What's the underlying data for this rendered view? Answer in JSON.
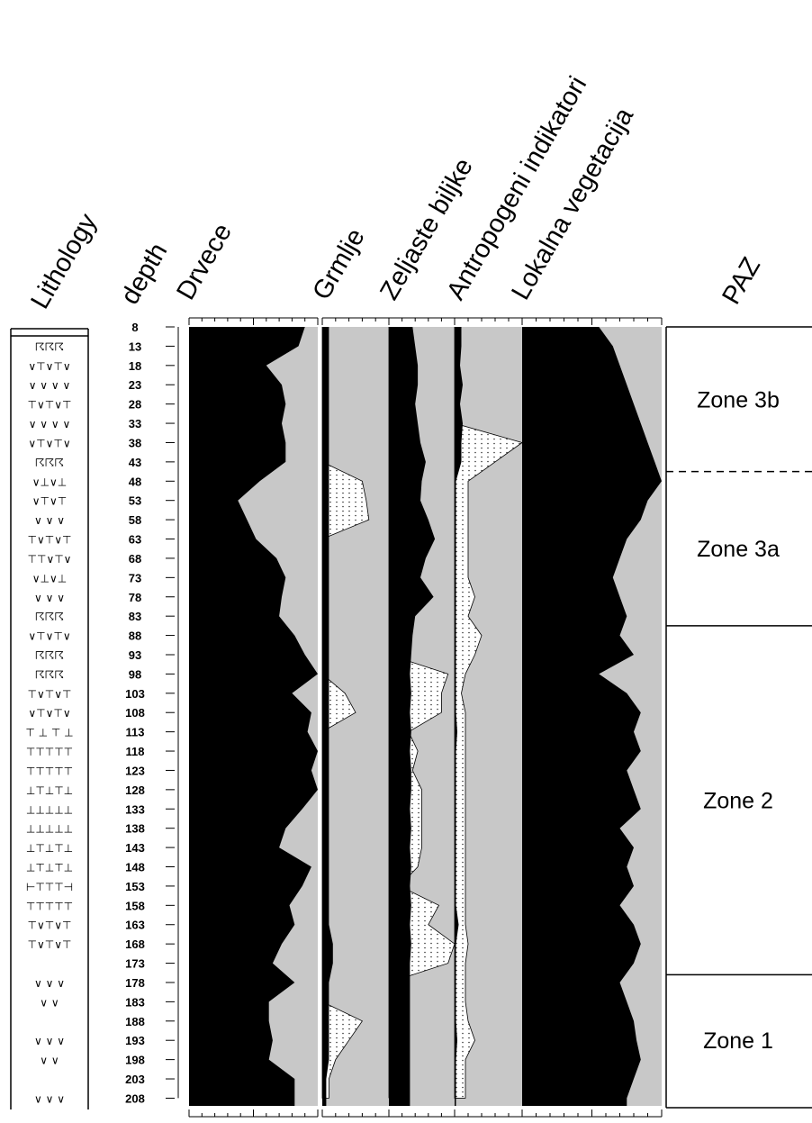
{
  "chart_data": {
    "type": "area",
    "title": "",
    "depth_label": "depth",
    "lithology_label": "Lithology",
    "zone_column_label": "PAZ",
    "depths": [
      8,
      13,
      18,
      23,
      28,
      33,
      38,
      43,
      48,
      53,
      58,
      63,
      68,
      73,
      78,
      83,
      88,
      93,
      98,
      103,
      108,
      113,
      118,
      123,
      128,
      133,
      138,
      143,
      148,
      153,
      158,
      163,
      168,
      173,
      178,
      183,
      188,
      193,
      198,
      203,
      208
    ],
    "panels": [
      {
        "name": "Drvece",
        "max": 100,
        "scale_label": "50%",
        "values": [
          90,
          85,
          60,
          72,
          75,
          72,
          75,
          75,
          55,
          38,
          45,
          52,
          68,
          75,
          72,
          70,
          82,
          90,
          100,
          80,
          95,
          92,
          100,
          95,
          100,
          88,
          75,
          70,
          95,
          88,
          78,
          82,
          72,
          65,
          82,
          62,
          62,
          65,
          62,
          82,
          82
        ]
      },
      {
        "name": "Grmlje",
        "max": 50,
        "scale_label": "30%",
        "values": [
          5,
          5,
          5,
          5,
          5,
          5,
          5,
          5,
          5,
          5,
          5,
          5,
          5,
          5,
          5,
          5,
          5,
          5,
          5,
          5,
          5,
          5,
          5,
          5,
          5,
          5,
          5,
          5,
          5,
          5,
          5,
          5,
          8,
          8,
          5,
          5,
          5,
          5,
          5,
          3,
          3
        ],
        "exag_values": [
          0,
          0,
          0,
          0,
          0,
          0,
          0,
          0,
          30,
          33,
          35,
          0,
          0,
          0,
          0,
          0,
          0,
          0,
          0,
          17,
          25,
          0,
          0,
          0,
          0,
          0,
          0,
          0,
          0,
          0,
          0,
          0,
          0,
          0,
          0,
          0,
          30,
          20,
          10,
          5,
          5
        ]
      },
      {
        "name": "Zeljaste biljke",
        "max": 50,
        "scale_label": "30%",
        "values": [
          18,
          20,
          22,
          22,
          20,
          22,
          24,
          28,
          25,
          24,
          30,
          35,
          28,
          24,
          34,
          20,
          18,
          17,
          16,
          17,
          16,
          17,
          16,
          17,
          17,
          16,
          17,
          16,
          17,
          16,
          17,
          16,
          17,
          16,
          16,
          16,
          16,
          16,
          16,
          16,
          16
        ],
        "exag_values": [
          0,
          0,
          0,
          0,
          0,
          0,
          0,
          0,
          0,
          0,
          0,
          0,
          0,
          0,
          0,
          0,
          0,
          0,
          45,
          40,
          40,
          15,
          22,
          18,
          25,
          25,
          25,
          25,
          22,
          8,
          38,
          30,
          50,
          45,
          0,
          0,
          0,
          0,
          0,
          0,
          0
        ]
      },
      {
        "name": "Antropogeni indikatori",
        "max": 50,
        "scale_label": "30%",
        "values": [
          5,
          5,
          4,
          6,
          4,
          6,
          5,
          5,
          1,
          1,
          1,
          1,
          1,
          1,
          1,
          1,
          1,
          1,
          1,
          1,
          1,
          2,
          1,
          1,
          1,
          1,
          1,
          1,
          1,
          1,
          1,
          3,
          1,
          1,
          1,
          1,
          1,
          2,
          1,
          1,
          1
        ],
        "exag_values": [
          0,
          0,
          0,
          0,
          0,
          0,
          50,
          30,
          10,
          10,
          10,
          10,
          10,
          10,
          15,
          10,
          20,
          15,
          8,
          5,
          8,
          8,
          8,
          8,
          8,
          8,
          8,
          8,
          8,
          8,
          8,
          8,
          10,
          8,
          8,
          8,
          10,
          15,
          8,
          8,
          8
        ]
      },
      {
        "name": "Lokalna vegetacija",
        "max": 100,
        "scale_label": "50%",
        "values": [
          55,
          65,
          70,
          75,
          80,
          85,
          90,
          95,
          100,
          90,
          85,
          75,
          70,
          65,
          70,
          75,
          70,
          80,
          55,
          75,
          85,
          80,
          85,
          75,
          80,
          85,
          70,
          80,
          75,
          80,
          70,
          80,
          85,
          80,
          70,
          75,
          80,
          82,
          85,
          80,
          75
        ]
      }
    ],
    "lithology": [
      {
        "depth": 13,
        "glyph": "☈☈☈"
      },
      {
        "depth": 18,
        "glyph": "∨⊤∨⊤∨"
      },
      {
        "depth": 23,
        "glyph": "∨ ∨ ∨ ∨"
      },
      {
        "depth": 28,
        "glyph": "⊤∨⊤∨⊤"
      },
      {
        "depth": 33,
        "glyph": "∨ ∨ ∨ ∨"
      },
      {
        "depth": 38,
        "glyph": "∨⊤∨⊤∨"
      },
      {
        "depth": 43,
        "glyph": "☈☈☈"
      },
      {
        "depth": 48,
        "glyph": "∨⊥∨⊥"
      },
      {
        "depth": 53,
        "glyph": "∨⊤∨⊤"
      },
      {
        "depth": 58,
        "glyph": "∨ ∨ ∨"
      },
      {
        "depth": 63,
        "glyph": "⊤∨⊤∨⊤"
      },
      {
        "depth": 68,
        "glyph": "⊤⊤∨⊤∨"
      },
      {
        "depth": 73,
        "glyph": "∨⊥∨⊥"
      },
      {
        "depth": 78,
        "glyph": "∨ ∨ ∨"
      },
      {
        "depth": 83,
        "glyph": "☈☈☈"
      },
      {
        "depth": 88,
        "glyph": "∨⊤∨⊤∨"
      },
      {
        "depth": 93,
        "glyph": "☈☈☈"
      },
      {
        "depth": 98,
        "glyph": "☈☈☈"
      },
      {
        "depth": 103,
        "glyph": "⊤∨⊤∨⊤"
      },
      {
        "depth": 108,
        "glyph": "∨⊤∨⊤∨"
      },
      {
        "depth": 113,
        "glyph": "⊤ ⊥ ⊤ ⊥"
      },
      {
        "depth": 118,
        "glyph": "⊤⊤⊤⊤⊤"
      },
      {
        "depth": 123,
        "glyph": "⊤⊤⊤⊤⊤"
      },
      {
        "depth": 128,
        "glyph": "⊥⊤⊥⊤⊥"
      },
      {
        "depth": 133,
        "glyph": "⊥⊥⊥⊥⊥"
      },
      {
        "depth": 138,
        "glyph": "⊥⊥⊥⊥⊥"
      },
      {
        "depth": 143,
        "glyph": "⊥⊤⊥⊤⊥"
      },
      {
        "depth": 148,
        "glyph": "⊥⊤⊥⊤⊥"
      },
      {
        "depth": 153,
        "glyph": "⊢⊤⊤⊤⊣"
      },
      {
        "depth": 158,
        "glyph": "⊤⊤⊤⊤⊤"
      },
      {
        "depth": 163,
        "glyph": "⊤∨⊤∨⊤"
      },
      {
        "depth": 168,
        "glyph": "⊤∨⊤∨⊤"
      },
      {
        "depth": 173,
        "glyph": " "
      },
      {
        "depth": 178,
        "glyph": "∨  ∨  ∨"
      },
      {
        "depth": 183,
        "glyph": "  ∨  ∨  "
      },
      {
        "depth": 188,
        "glyph": " "
      },
      {
        "depth": 193,
        "glyph": "∨  ∨  ∨"
      },
      {
        "depth": 198,
        "glyph": "  ∨  ∨  "
      },
      {
        "depth": 203,
        "glyph": " "
      },
      {
        "depth": 208,
        "glyph": "∨  ∨  ∨"
      }
    ],
    "zones": [
      {
        "label": "Zone 3b",
        "from": 8,
        "to": 45.5,
        "boundary_style": "dashed"
      },
      {
        "label": "Zone 3a",
        "from": 45.5,
        "to": 85.5,
        "boundary_style": "solid"
      },
      {
        "label": "Zone 2",
        "from": 85.5,
        "to": 176,
        "boundary_style": "solid"
      },
      {
        "label": "Zone 1",
        "from": 176,
        "to": 210,
        "boundary_style": "solid"
      }
    ],
    "colors": {
      "main": "#000000",
      "background": "#c8c8c8",
      "exaggeration": "#ffffff",
      "dots": "#333333"
    }
  }
}
